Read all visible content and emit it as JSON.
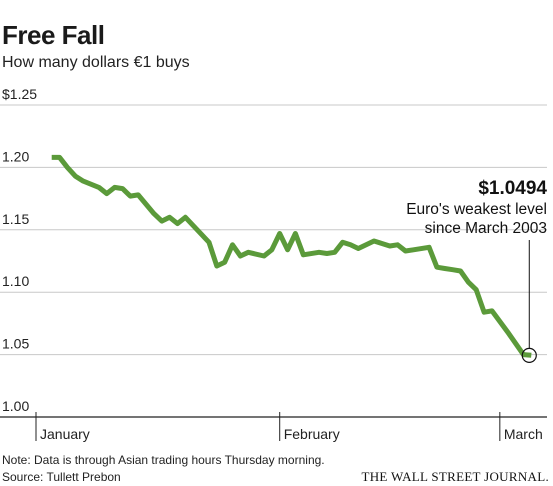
{
  "chart_data": {
    "type": "line",
    "title": "Free Fall",
    "subtitle": "How many dollars €1 buys",
    "ylim": [
      1.0,
      1.25
    ],
    "yticks": [
      1.0,
      1.05,
      1.1,
      1.15,
      1.2,
      1.25
    ],
    "ytick_labels": [
      "1.00",
      "1.05",
      "1.10",
      "1.15",
      "1.20",
      "$1.25"
    ],
    "xlim": [
      0,
      65
    ],
    "xticks": [
      {
        "index": 0,
        "label": "January"
      },
      {
        "index": 31,
        "label": "February"
      },
      {
        "index": 59,
        "label": "March"
      }
    ],
    "grid": true,
    "line_color": "#5b9a3a",
    "series": [
      {
        "values": [
          1.208,
          1.208,
          1.2,
          1.193,
          1.189,
          1.184,
          1.179,
          1.184,
          1.183,
          1.177,
          1.178,
          1.163,
          1.157,
          1.16,
          1.155,
          1.16,
          1.14,
          1.121,
          1.124,
          1.138,
          1.129,
          1.132,
          1.129,
          1.134,
          1.147,
          1.134,
          1.147,
          1.13,
          1.132,
          1.131,
          1.132,
          1.14,
          1.138,
          1.135,
          1.141,
          1.139,
          1.137,
          1.138,
          1.133,
          1.134,
          1.136,
          1.12,
          1.119,
          1.118,
          1.117,
          1.108,
          1.102,
          1.084,
          1.085,
          1.068,
          1.05,
          1.0494
        ],
        "x": [
          2,
          3,
          4,
          5,
          6,
          8,
          9,
          10,
          11,
          12,
          13,
          15,
          16,
          17,
          18,
          19,
          22,
          23,
          24,
          25,
          26,
          27,
          29,
          30,
          31,
          32,
          33,
          34,
          36,
          37,
          38,
          39,
          40,
          41,
          43,
          44,
          45,
          46,
          47,
          48,
          50,
          51,
          52,
          53,
          54,
          55,
          56,
          57,
          58,
          60,
          62,
          63
        ]
      }
    ],
    "annotation": {
      "value": "$1.0494",
      "line1": "Euro's weakest level",
      "line2": "since March 2003"
    }
  },
  "footer": {
    "note": "Note: Data is through Asian trading hours Thursday morning.",
    "source": "Source: Tullett Prebon",
    "credit": "THE WALL STREET JOURNAL."
  }
}
